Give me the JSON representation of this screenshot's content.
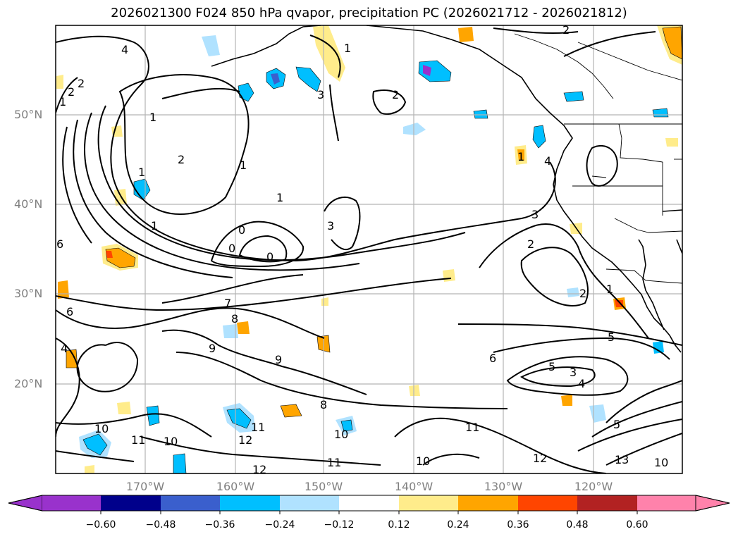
{
  "title": "2026021300 F024 850 hPa qvapor, precipitation PC (2026021712 - 2026021812)",
  "lat_labels": [
    "50°N",
    "40°N",
    "30°N",
    "20°N"
  ],
  "lon_labels": [
    "170°W",
    "160°W",
    "150°W",
    "140°W",
    "130°W",
    "120°W"
  ],
  "colorbar": {
    "ticks": [
      "−0.60",
      "−0.48",
      "−0.36",
      "−0.24",
      "−0.12",
      "0.12",
      "0.24",
      "0.36",
      "0.48",
      "0.60"
    ],
    "colors": [
      "#9932cc",
      "#00008b",
      "#3a5fcd",
      "#00bfff",
      "#b0e2ff",
      "#ffffff",
      "#ffec8b",
      "#ffa500",
      "#ff4500",
      "#b22222",
      "#ff82ab"
    ]
  },
  "contour_labels": [
    "4",
    "2",
    "1",
    "2",
    "1",
    "1",
    "1",
    "1",
    "0",
    "0",
    "0",
    "3",
    "3",
    "2",
    "6",
    "7",
    "8",
    "9",
    "9",
    "8",
    "6",
    "4",
    "5",
    "5",
    "10",
    "11",
    "10",
    "12",
    "11",
    "12",
    "10",
    "11",
    "12",
    "13",
    "10",
    "6",
    "5",
    "4",
    "3",
    "2",
    "1",
    "2",
    "1",
    "3",
    "4",
    "2",
    "1",
    "1",
    "2",
    "10",
    "11"
  ]
}
